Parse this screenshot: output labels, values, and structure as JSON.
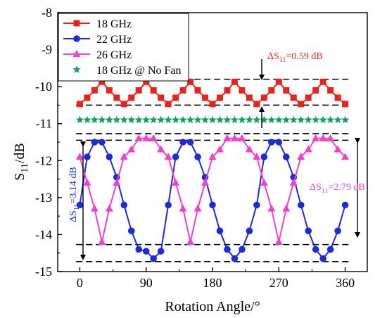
{
  "chart_data": {
    "type": "line",
    "xlabel": "Rotation Angle/°",
    "ylabel": "S11/dB",
    "ylabel_main": "S",
    "ylabel_sub": "11",
    "ylabel_unit": "/dB",
    "xlim": [
      -30,
      390
    ],
    "ylim": [
      -15,
      -8
    ],
    "xticks": [
      0,
      90,
      180,
      270,
      360
    ],
    "yticks": [
      -15,
      -14,
      -13,
      -12,
      -11,
      -10,
      -9,
      -8
    ],
    "grid": false,
    "legend": "top-left",
    "x": [
      0,
      10,
      20,
      30,
      40,
      50,
      60,
      70,
      80,
      90,
      100,
      110,
      120,
      130,
      140,
      150,
      160,
      170,
      180,
      190,
      200,
      210,
      220,
      230,
      240,
      250,
      260,
      270,
      280,
      290,
      300,
      310,
      320,
      330,
      340,
      350,
      360
    ],
    "series": [
      {
        "name": "18 GHz",
        "color": "#e8231a",
        "marker": "square",
        "line": true,
        "values": [
          -10.47,
          -10.3,
          -10.1,
          -9.87,
          -10.1,
          -10.3,
          -10.47,
          -10.3,
          -10.1,
          -9.87,
          -10.1,
          -10.3,
          -10.47,
          -10.3,
          -10.1,
          -9.87,
          -10.1,
          -10.3,
          -10.47,
          -10.3,
          -10.1,
          -9.87,
          -10.1,
          -10.3,
          -10.47,
          -10.3,
          -10.1,
          -9.87,
          -10.1,
          -10.3,
          -10.47,
          -10.3,
          -10.1,
          -9.87,
          -10.1,
          -10.3,
          -10.47
        ]
      },
      {
        "name": "22 GHz",
        "color": "#1b2bd8",
        "marker": "circle",
        "line": true,
        "values": [
          -13.2,
          -11.9,
          -11.5,
          -11.5,
          -11.9,
          -12.45,
          -13.2,
          -13.9,
          -14.4,
          -14.45,
          -14.65,
          -14.45,
          -13.2,
          -11.9,
          -11.5,
          -11.5,
          -11.9,
          -12.45,
          -13.2,
          -13.9,
          -14.4,
          -14.65,
          -14.4,
          -13.9,
          -13.2,
          -11.9,
          -11.5,
          -11.5,
          -11.9,
          -12.45,
          -13.2,
          -13.9,
          -14.4,
          -14.65,
          -14.4,
          -13.9,
          -13.2
        ]
      },
      {
        "name": "26 GHz",
        "color": "#f23fd2",
        "marker": "triangle",
        "line": true,
        "values": [
          -11.9,
          -12.6,
          -13.3,
          -14.2,
          -13.3,
          -12.6,
          -11.9,
          -11.7,
          -11.4,
          -11.4,
          -11.4,
          -11.7,
          -11.9,
          -12.6,
          -13.3,
          -14.2,
          -13.3,
          -12.6,
          -11.9,
          -11.7,
          -11.4,
          -11.4,
          -11.4,
          -11.7,
          -11.9,
          -12.6,
          -13.3,
          -14.2,
          -13.3,
          -12.6,
          -11.9,
          -11.7,
          -11.4,
          -11.4,
          -11.4,
          -11.7,
          -11.9
        ]
      },
      {
        "name": "18 GHz @ No Fan",
        "color": "#10a05a",
        "marker": "star",
        "line": false,
        "values": [
          -10.9,
          -10.9,
          -10.9,
          -10.9,
          -10.9,
          -10.9,
          -10.9,
          -10.9,
          -10.9,
          -10.9,
          -10.9,
          -10.9,
          -10.9,
          -10.9,
          -10.9,
          -10.9,
          -10.9,
          -10.9,
          -10.9,
          -10.9,
          -10.9,
          -10.9,
          -10.9,
          -10.9,
          -10.9,
          -10.9,
          -10.9,
          -10.9,
          -10.9,
          -10.9,
          -10.9,
          -10.9,
          -10.9,
          -10.9,
          -10.9,
          -10.9,
          -10.9
        ]
      }
    ],
    "reference_lines": [
      -9.8,
      -10.5,
      -11.27,
      -11.45,
      -14.27,
      -14.73
    ],
    "annotations": [
      {
        "delta": "ΔS",
        "sub": "11",
        "value": "=0.59 dB",
        "color": "#e8231a"
      },
      {
        "delta": "ΔS",
        "sub": "11",
        "value": "=2.79 dB",
        "color": "#f23fd2"
      },
      {
        "delta": "ΔS",
        "sub": "11",
        "value": "=3.14 dB",
        "color": "#1b2bd8"
      }
    ]
  }
}
